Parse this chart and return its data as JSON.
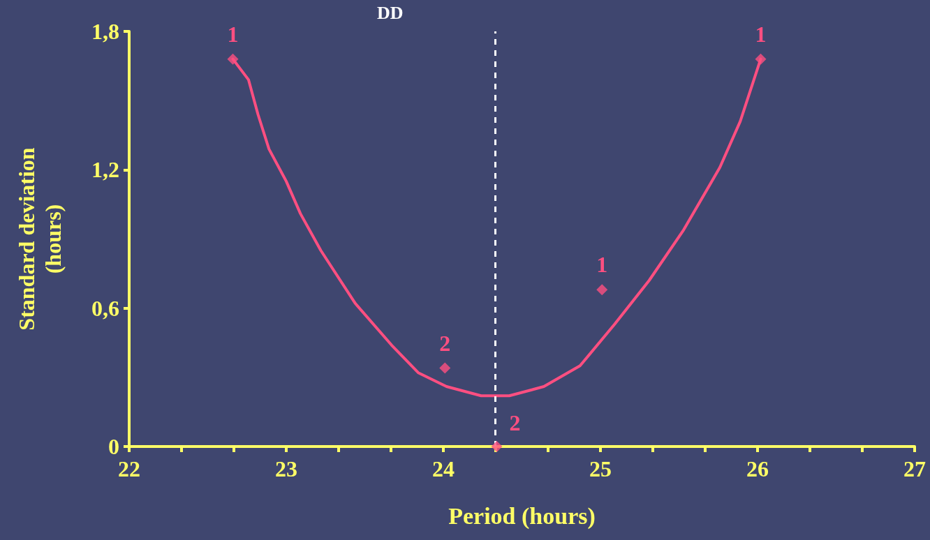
{
  "chart_data": {
    "type": "scatter",
    "title": "DD",
    "xlabel": "Period (hours)",
    "ylabel": "Standard deviation\n(hours)",
    "xlim": [
      22,
      27
    ],
    "xticks": [
      22,
      {
        "value": 22.333,
        "label": null
      },
      {
        "value": 22.667,
        "label": null
      },
      23,
      {
        "value": 23.333,
        "label": null
      },
      {
        "value": 23.667,
        "label": null
      },
      24,
      {
        "value": 24.333,
        "label": null
      },
      {
        "value": 24.667,
        "label": null
      },
      25,
      {
        "value": 25.333,
        "label": null
      },
      {
        "value": 25.667,
        "label": null
      },
      26,
      {
        "value": 26.333,
        "label": null
      },
      {
        "value": 26.667,
        "label": null
      },
      27
    ],
    "ylim": [
      0,
      1.8
    ],
    "yticks": [
      0,
      {
        "value": 0.6,
        "label": "0,6"
      },
      {
        "value": 1.2,
        "label": "1,2"
      },
      {
        "value": 1.8,
        "label": "1,8"
      }
    ],
    "grid": false,
    "series": [
      {
        "color": "#ff4f81",
        "marker": "diamond",
        "x": [
          22.66,
          24.01,
          24.34,
          25.01,
          26.02
        ],
        "values": [
          1.68,
          0.34,
          0.0,
          0.68,
          1.68
        ]
      },
      {
        "type": "line",
        "color": "#ff4f81",
        "marker": "none",
        "line_style": "solid",
        "x": [
          22.66,
          22.76,
          22.82,
          22.89,
          23.0,
          23.09,
          23.22,
          23.44,
          23.67,
          23.84,
          24.02,
          24.24,
          24.42,
          24.64,
          24.87,
          25.09,
          25.31,
          25.53,
          25.76,
          25.89,
          26.02
        ],
        "values": [
          1.68,
          1.59,
          1.44,
          1.29,
          1.15,
          1.01,
          0.85,
          0.62,
          0.44,
          0.32,
          0.26,
          0.22,
          0.22,
          0.26,
          0.35,
          0.53,
          0.72,
          0.94,
          1.21,
          1.41,
          1.68
        ]
      }
    ],
    "ref_lines": [
      {
        "axis": "x",
        "value": 24.33,
        "color": "#ffffff",
        "line_style": "dashed"
      }
    ],
    "annotations": [
      {
        "text": "1",
        "x": 22.66,
        "y": 1.68
      },
      {
        "text": "2",
        "x": 24.01,
        "y": 0.34
      },
      {
        "text": "2",
        "x": 24.34,
        "y": 0.0
      },
      {
        "text": "1",
        "x": 25.01,
        "y": 0.68
      },
      {
        "text": "1",
        "x": 26.02,
        "y": 1.68
      }
    ]
  }
}
